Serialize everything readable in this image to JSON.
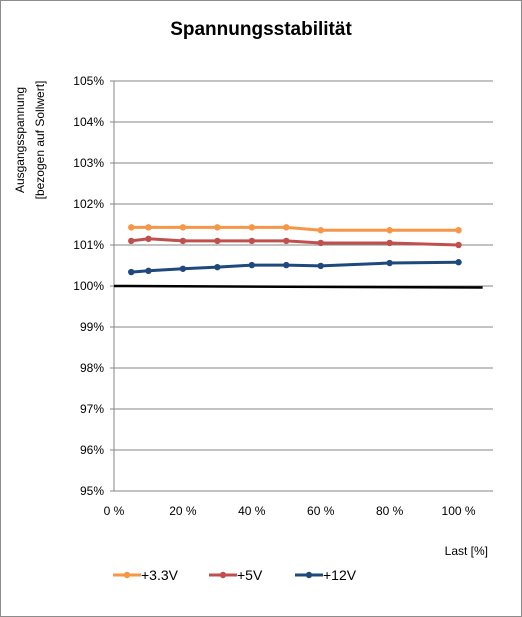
{
  "chart_data": {
    "type": "line",
    "title": "Spannungsstabilität",
    "ylabel_line1": "Ausgangsspannung",
    "ylabel_line2": "[bezogen auf Sollwert]",
    "xlabel": "Last [%]",
    "ylim": [
      95,
      105
    ],
    "xlim": [
      0,
      110
    ],
    "y_ticks": [
      95,
      96,
      97,
      98,
      99,
      100,
      101,
      102,
      103,
      104,
      105
    ],
    "y_tick_labels": [
      "95%",
      "96%",
      "97%",
      "98%",
      "99%",
      "100%",
      "101%",
      "102%",
      "103%",
      "104%",
      "105%"
    ],
    "x_ticks": [
      0,
      20,
      40,
      60,
      80,
      100
    ],
    "x_tick_labels": [
      "0 %",
      "20 %",
      "40 %",
      "60 %",
      "80 %",
      "100 %"
    ],
    "grid": "horizontal",
    "legend_position": "bottom",
    "reference_line": {
      "y": 100,
      "x": [
        0,
        107
      ],
      "color": "#000000"
    },
    "x": [
      5,
      10,
      20,
      30,
      40,
      50,
      60,
      80,
      100
    ],
    "series": [
      {
        "name": "+3.3V",
        "color": "#f79646",
        "values": [
          101.43,
          101.43,
          101.43,
          101.43,
          101.43,
          101.43,
          101.36,
          101.36,
          101.36
        ]
      },
      {
        "name": "+5V",
        "color": "#c0504d",
        "values": [
          101.1,
          101.15,
          101.1,
          101.1,
          101.1,
          101.1,
          101.05,
          101.05,
          101.0
        ]
      },
      {
        "name": "+12V",
        "color": "#1f497d",
        "values": [
          100.34,
          100.37,
          100.42,
          100.46,
          100.51,
          100.51,
          100.49,
          100.56,
          100.58
        ]
      }
    ]
  }
}
